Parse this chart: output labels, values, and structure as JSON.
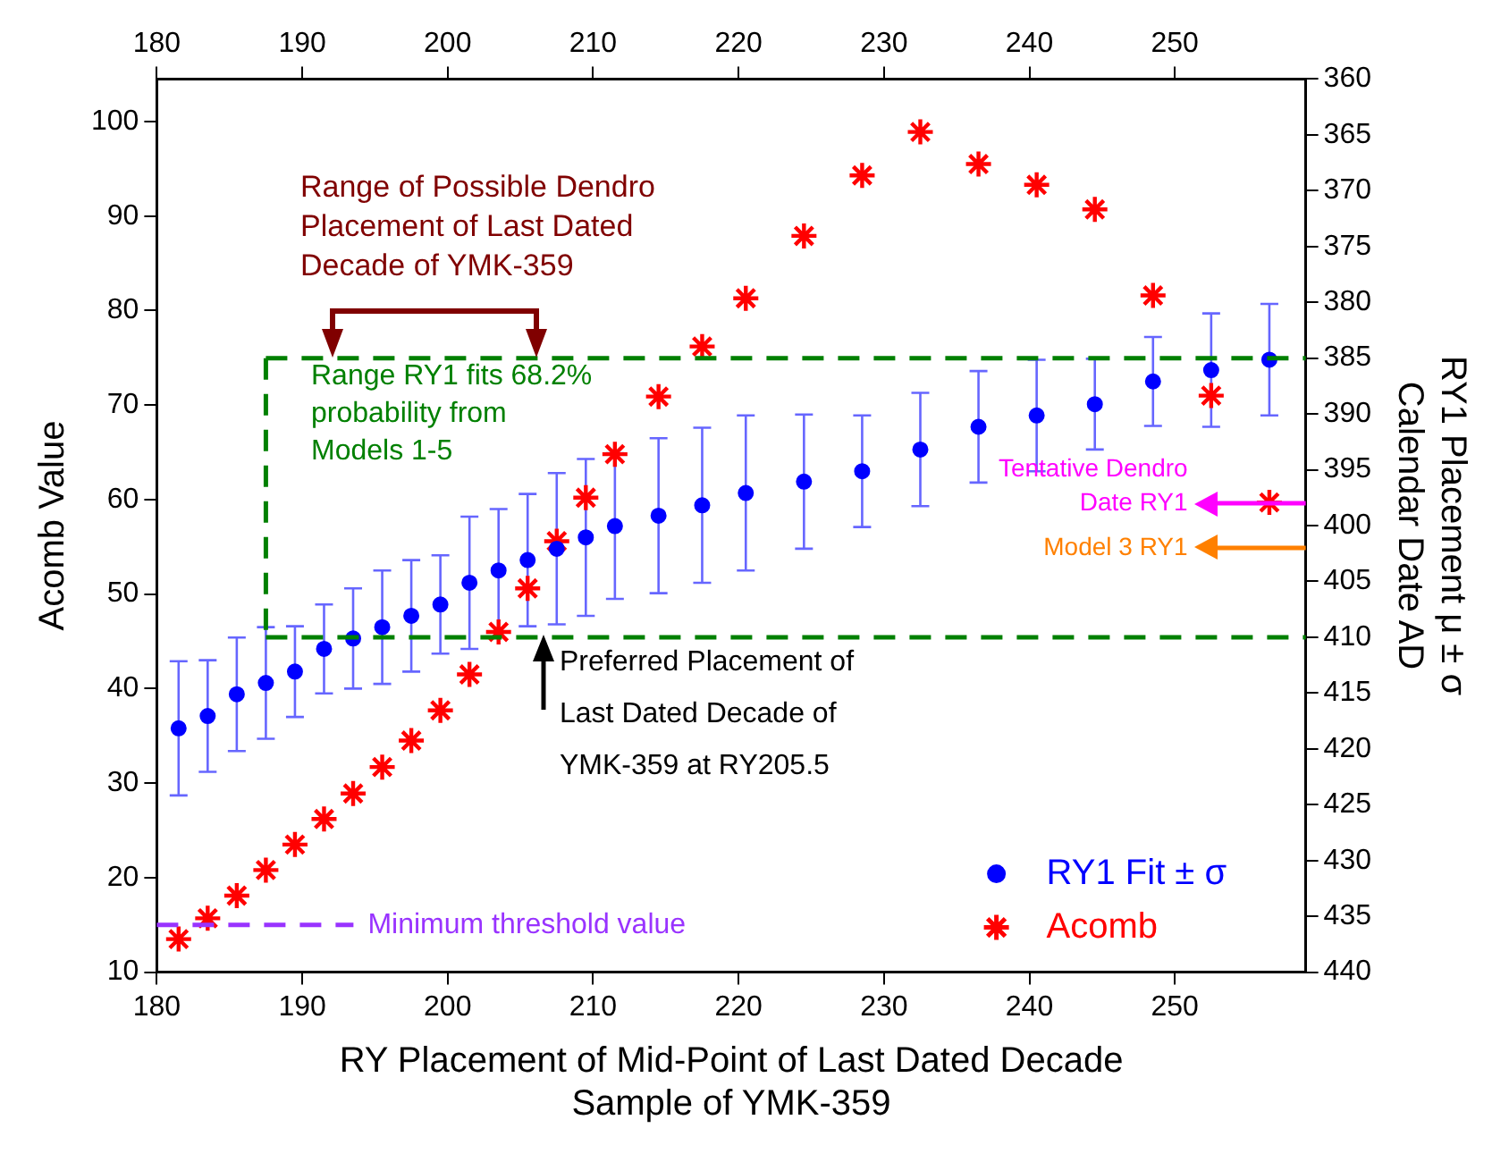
{
  "chart_data": {
    "type": "scatter",
    "x": [
      181.5,
      183.5,
      185.5,
      187.5,
      189.5,
      191.5,
      193.5,
      195.5,
      197.5,
      199.5,
      201.5,
      203.5,
      205.5,
      207.5,
      209.5,
      211.5,
      214.5,
      217.5,
      220.5,
      224.5,
      228.5,
      232.5,
      236.5,
      240.5,
      244.5,
      248.5,
      252.5,
      256.5
    ],
    "series": [
      {
        "name": "RY1 Fit ± σ",
        "color": "#0000ff",
        "marker": "circle",
        "values": [
          35.8,
          37.1,
          39.4,
          40.6,
          41.8,
          44.2,
          45.3,
          46.5,
          47.7,
          48.9,
          51.2,
          52.5,
          53.6,
          54.8,
          56.0,
          57.2,
          58.3,
          59.4,
          60.7,
          61.9,
          63.0,
          65.3,
          67.7,
          68.9,
          70.1,
          72.5,
          73.7,
          74.8
        ],
        "errors": [
          7.1,
          5.9,
          6.0,
          5.9,
          4.8,
          4.7,
          5.3,
          6.0,
          5.9,
          5.2,
          7.0,
          6.5,
          7.0,
          8.0,
          8.3,
          7.7,
          8.2,
          8.2,
          8.2,
          7.1,
          5.9,
          6.0,
          5.9,
          5.9,
          4.8,
          4.7,
          6.0,
          5.9
        ]
      },
      {
        "name": "Acomb",
        "color": "#ff0000",
        "marker": "cross",
        "values": [
          13.5,
          15.7,
          18.1,
          20.8,
          23.5,
          26.2,
          28.9,
          31.7,
          34.5,
          37.7,
          41.5,
          46.0,
          50.6,
          55.6,
          60.2,
          64.8,
          70.9,
          76.2,
          81.3,
          87.9,
          94.3,
          98.9,
          95.5,
          93.3,
          90.7,
          81.6,
          71.0,
          59.7
        ]
      }
    ],
    "xlabel": "RY Placement of Mid-Point of Last Dated Decade Sample of YMK-359",
    "ylabel": "Acomb Value",
    "y2label": "RY1 Placement μ ± σ Calendar Date AD",
    "xlim": [
      180,
      259
    ],
    "xticks": [
      180,
      190,
      200,
      210,
      220,
      230,
      240,
      250
    ],
    "x2lim": [
      180,
      259
    ],
    "x2ticks": [
      180,
      190,
      200,
      210,
      220,
      230,
      240,
      250
    ],
    "ylim": [
      10,
      104.5
    ],
    "yticks": [
      10,
      20,
      30,
      40,
      50,
      60,
      70,
      80,
      90,
      100
    ],
    "y2lim": [
      440,
      360
    ],
    "y2ticks": [
      360,
      365,
      370,
      375,
      380,
      385,
      390,
      395,
      400,
      405,
      410,
      415,
      420,
      425,
      430,
      435,
      440
    ],
    "ref_lines": [
      {
        "axis": "x",
        "value": 187.5,
        "color": "#008000",
        "line_style": "dashed"
      },
      {
        "axis": "y2",
        "value": 385,
        "color": "#008000",
        "line_style": "dashed"
      },
      {
        "axis": "y2",
        "value": 410,
        "color": "#008000",
        "line_style": "dashed"
      },
      {
        "axis": "y",
        "value": 15,
        "label": "Minimum threshold value",
        "color": "#9933ff",
        "line_style": "dashed"
      },
      {
        "axis": "y2",
        "value": 398,
        "label": "Tentative Dendro Date RY1",
        "color": "#ff00ff",
        "line_style": "solid"
      },
      {
        "axis": "y2",
        "value": 402,
        "label": "Model 3 RY1",
        "color": "#ff8000",
        "line_style": "solid"
      }
    ],
    "annotations": [
      "Range of Possible Dendro Placement of Last Dated Decade of YMK-359",
      "Range RY1 fits 68.2% probability from Models 1-5",
      "Preferred Placement of Last Dated Decade of YMK-359 at RY205.5"
    ],
    "legend": "bottom right"
  }
}
